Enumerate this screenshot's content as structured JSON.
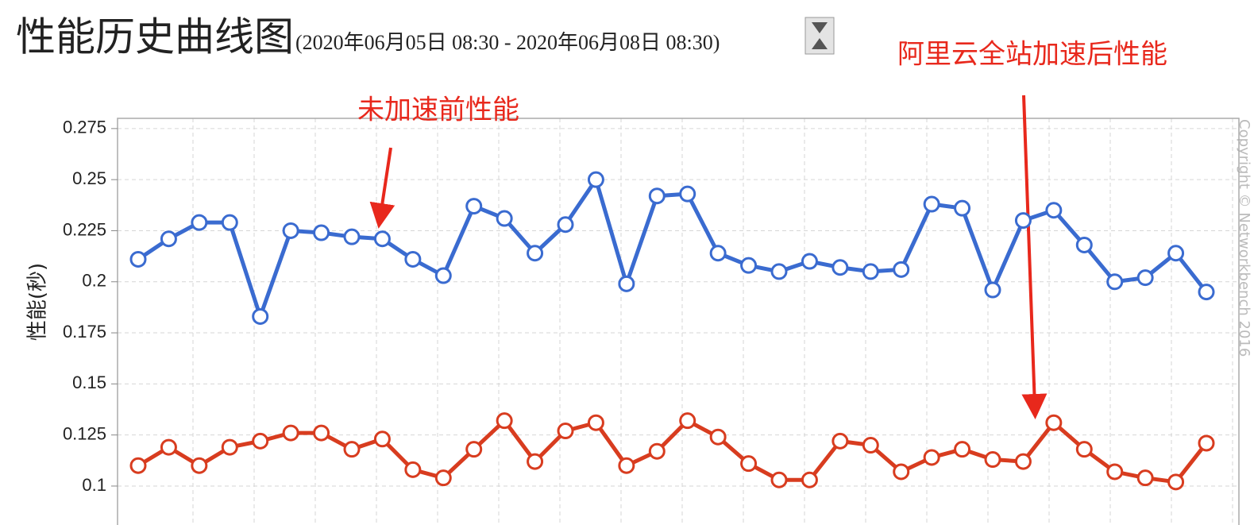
{
  "chart_data": {
    "type": "line",
    "title": "性能历史曲线图",
    "subtitle": "(2020年06月05日 08:30 - 2020年06月08日 08:30)",
    "y_label": "性能(秒)",
    "copyright": "Copyright © Networkbench 2016",
    "categories": [
      null,
      null,
      null,
      null,
      null,
      null,
      null,
      null,
      null,
      null,
      null,
      null,
      null,
      null,
      null,
      null,
      null,
      null,
      null,
      null,
      null,
      null,
      null,
      null,
      null,
      null,
      null,
      null,
      null,
      null,
      null,
      null,
      null,
      null,
      null,
      null
    ],
    "series": [
      {
        "name": "未加速前性能",
        "color": "#3a6bd0",
        "values": [
          0.211,
          0.221,
          0.229,
          0.229,
          0.183,
          0.225,
          0.224,
          0.222,
          0.221,
          0.211,
          0.203,
          0.237,
          0.231,
          0.214,
          0.228,
          0.25,
          0.199,
          0.242,
          0.243,
          0.214,
          0.208,
          0.205,
          0.21,
          0.207,
          0.205,
          0.206,
          0.238,
          0.236,
          0.196,
          0.23,
          0.235,
          0.218,
          0.2,
          0.202,
          0.214,
          0.195
        ]
      },
      {
        "name": "阿里云全站加速后性能",
        "color": "#d83c1f",
        "values": [
          0.11,
          0.119,
          0.11,
          0.119,
          0.122,
          0.126,
          0.126,
          0.118,
          0.123,
          0.108,
          0.104,
          0.118,
          0.132,
          0.112,
          0.127,
          0.131,
          0.11,
          0.117,
          0.132,
          0.124,
          0.111,
          0.103,
          0.103,
          0.122,
          0.12,
          0.107,
          0.114,
          0.118,
          0.113,
          0.112,
          0.131,
          0.118,
          0.107,
          0.104,
          0.102,
          0.121
        ]
      }
    ],
    "ylim": [
      0.08,
      0.28
    ],
    "yticks": [
      0.1,
      0.125,
      0.15,
      0.175,
      0.2,
      0.225,
      0.25,
      0.275
    ],
    "grid": true
  }
}
